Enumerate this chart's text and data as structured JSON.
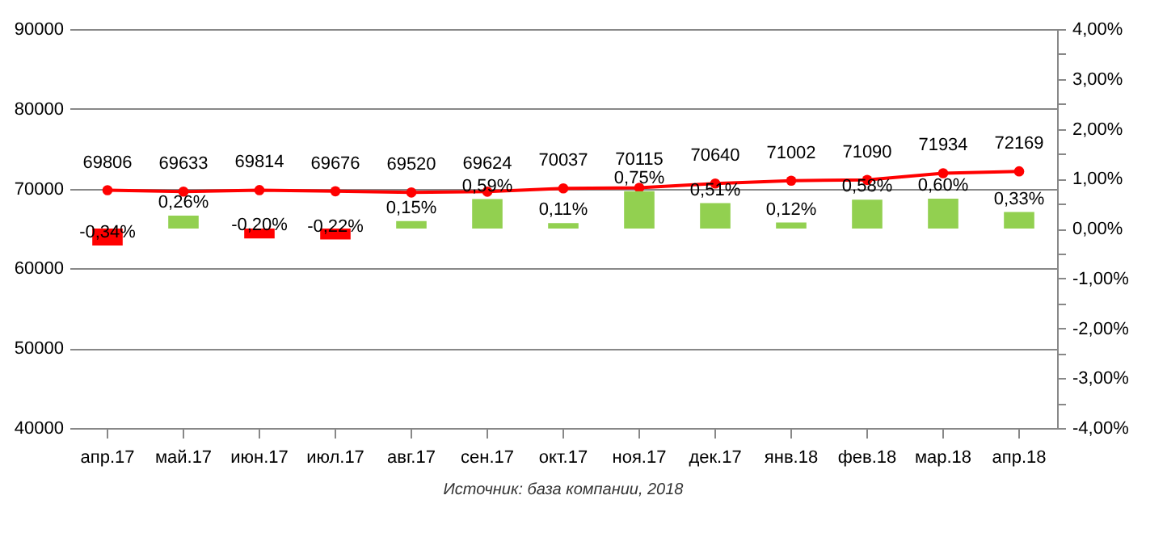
{
  "chart_data": {
    "type": "line",
    "categories": [
      "апр.17",
      "май.17",
      "июн.17",
      "июл.17",
      "авг.17",
      "сен.17",
      "окт.17",
      "ноя.17",
      "дек.17",
      "янв.18",
      "фев.18",
      "мар.18",
      "апр.18"
    ],
    "series": [
      {
        "color": "#ff0000",
        "marker": "circle",
        "values": [
          69806,
          69633,
          69814,
          69676,
          69520,
          69624,
          70037,
          70115,
          70640,
          71002,
          71090,
          71934,
          72169
        ],
        "value_labels": [
          "69806",
          "69633",
          "69814",
          "69676",
          "69520",
          "69624",
          "70037",
          "70115",
          "70640",
          "71002",
          "71090",
          "71934",
          "72169"
        ]
      },
      {
        "type": "bar",
        "axis": "y2",
        "colors": [
          "#ff0000",
          "#92d050",
          "#ff0000",
          "#ff0000",
          "#92d050",
          "#92d050",
          "#92d050",
          "#92d050",
          "#92d050",
          "#92d050",
          "#92d050",
          "#92d050",
          "#92d050"
        ],
        "values": [
          -0.34,
          0.26,
          -0.2,
          -0.22,
          0.15,
          0.59,
          0.11,
          0.75,
          0.51,
          0.12,
          0.58,
          0.6,
          0.33
        ],
        "value_labels": [
          "-0,34%",
          "0,26%",
          "-0,20%",
          "-0,22%",
          "0,15%",
          "0,59%",
          "0,11%",
          "0,75%",
          "0,51%",
          "0,12%",
          "0,58%",
          "0,60%",
          "0,33%"
        ]
      }
    ],
    "ylim": [
      40000,
      90000
    ],
    "yticks": [
      40000,
      50000,
      60000,
      70000,
      80000,
      90000
    ],
    "y2lim": [
      -4,
      4
    ],
    "y2ticks": [
      {
        "value": -4,
        "label": "-4,00%"
      },
      {
        "value": -3.5,
        "label": null
      },
      {
        "value": -3,
        "label": "-3,00%"
      },
      {
        "value": -2.5,
        "label": null
      },
      {
        "value": -2,
        "label": "-2,00%"
      },
      {
        "value": -1.5,
        "label": null
      },
      {
        "value": -1,
        "label": "-1,00%"
      },
      {
        "value": -0.5,
        "label": null
      },
      {
        "value": 0,
        "label": "0,00%"
      },
      {
        "value": 0.5,
        "label": null
      },
      {
        "value": 1,
        "label": "1,00%"
      },
      {
        "value": 1.5,
        "label": null
      },
      {
        "value": 2,
        "label": "2,00%"
      },
      {
        "value": 2.5,
        "label": null
      },
      {
        "value": 3,
        "label": "3,00%"
      },
      {
        "value": 3.5,
        "label": null
      },
      {
        "value": 4,
        "label": "4,00%"
      }
    ],
    "grid": "y",
    "annotations": [
      "Источник: база компании, 2018"
    ]
  }
}
